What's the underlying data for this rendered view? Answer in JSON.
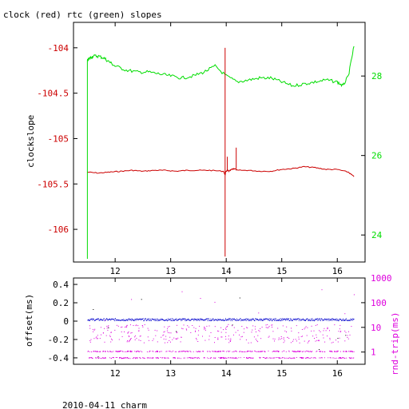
{
  "title": "clock (red) rtc (green) slopes",
  "footer": "2010-04-11 charm",
  "colors": {
    "clock": "#cc0000",
    "rtc": "#00dd00",
    "offset": "#0000cc",
    "rtt": "#dd00dd",
    "axis": "#000000"
  },
  "chart_data": [
    {
      "type": "line",
      "title": "clock (red) rtc (green) slopes",
      "xlabel": "",
      "ylabel": "clockslope",
      "x_ticks": [
        12,
        13,
        14,
        15,
        16
      ],
      "xlim": [
        11.25,
        16.5
      ],
      "left_axis": {
        "ylim": [
          -106.36,
          -103.72
        ],
        "ticks": [
          "-104",
          "-104.5",
          "-105",
          "-105.5",
          "-106"
        ],
        "tick_values": [
          -104,
          -104.5,
          -105,
          -105.5,
          -106
        ],
        "color": "#cc0000"
      },
      "right_axis": {
        "ylim": [
          23.32,
          29.35
        ],
        "ticks": [
          "28",
          "26",
          "24"
        ],
        "tick_values": [
          28,
          26,
          24
        ],
        "color": "#00dd00"
      },
      "grid": false,
      "series": [
        {
          "name": "clock",
          "axis": "left",
          "color": "#cc0000",
          "x": [
            11.5,
            11.7,
            11.9,
            12.1,
            12.3,
            12.5,
            12.7,
            12.9,
            13.1,
            13.3,
            13.5,
            13.7,
            13.95,
            13.98,
            13.99,
            14.02,
            14.05,
            14.1,
            14.15,
            14.2,
            14.4,
            14.6,
            14.8,
            15.0,
            15.2,
            15.4,
            15.6,
            15.8,
            16.0,
            16.2,
            16.3
          ],
          "y": [
            -105.37,
            -105.38,
            -105.37,
            -105.36,
            -105.35,
            -105.36,
            -105.35,
            -105.35,
            -105.36,
            -105.35,
            -105.35,
            -105.35,
            -105.36,
            -105.4,
            -105.37,
            -105.35,
            -105.36,
            -105.34,
            -105.33,
            -105.35,
            -105.35,
            -105.36,
            -105.36,
            -105.34,
            -105.33,
            -105.31,
            -105.32,
            -105.34,
            -105.34,
            -105.37,
            -105.42
          ]
        },
        {
          "name": "rtc",
          "axis": "right",
          "color": "#00dd00",
          "x": [
            11.5,
            11.55,
            11.6,
            11.7,
            11.8,
            11.9,
            12.0,
            12.2,
            12.4,
            12.6,
            12.8,
            13.0,
            13.2,
            13.4,
            13.6,
            13.8,
            14.0,
            14.2,
            14.4,
            14.6,
            14.8,
            15.0,
            15.2,
            15.4,
            15.6,
            15.8,
            16.0,
            16.1,
            16.2,
            16.3
          ],
          "y": [
            28.4,
            28.45,
            28.5,
            28.5,
            28.45,
            28.35,
            28.25,
            28.15,
            28.1,
            28.1,
            28.05,
            28.0,
            27.95,
            28.0,
            28.1,
            28.25,
            28.0,
            27.85,
            27.9,
            27.95,
            27.95,
            27.85,
            27.75,
            27.8,
            27.85,
            27.9,
            27.85,
            27.75,
            28.0,
            28.75
          ]
        }
      ],
      "spikes": [
        {
          "series": "clock",
          "x": 13.98,
          "y": -104.0
        },
        {
          "series": "clock",
          "x": 13.98,
          "y": -106.3
        },
        {
          "series": "clock",
          "x": 14.02,
          "y": -105.2
        },
        {
          "series": "clock",
          "x": 14.18,
          "y": -105.1
        },
        {
          "series": "rtc",
          "x": 11.5,
          "y": 23.4
        }
      ]
    },
    {
      "type": "scatter",
      "xlabel": "",
      "ylabel": "offset(ms)",
      "y2label": "rnd-trip(ms)",
      "x_ticks": [
        12,
        13,
        14,
        15,
        16
      ],
      "xlim": [
        11.25,
        16.5
      ],
      "left_axis": {
        "ylim": [
          -0.47,
          0.47
        ],
        "ticks": [
          "0.4",
          "0.2",
          "0",
          "-0.2",
          "-0.4"
        ],
        "tick_values": [
          0.4,
          0.2,
          0,
          -0.2,
          -0.4
        ]
      },
      "right_axis": {
        "scale": "log",
        "ylim": [
          0.32,
          1000
        ],
        "ticks": [
          "1000",
          "100",
          "10",
          "1"
        ],
        "tick_values": [
          1000,
          100,
          10,
          1
        ]
      },
      "series": [
        {
          "name": "offset",
          "axis": "left",
          "color": "#0000cc",
          "level": 0.02,
          "spread": 0.012
        },
        {
          "name": "rnd-trip",
          "axis": "right",
          "color": "#dd00dd",
          "bands": [
            1.1,
            0.6,
            9,
            3.5
          ],
          "scatter": [
            6,
            30
          ]
        }
      ]
    }
  ]
}
